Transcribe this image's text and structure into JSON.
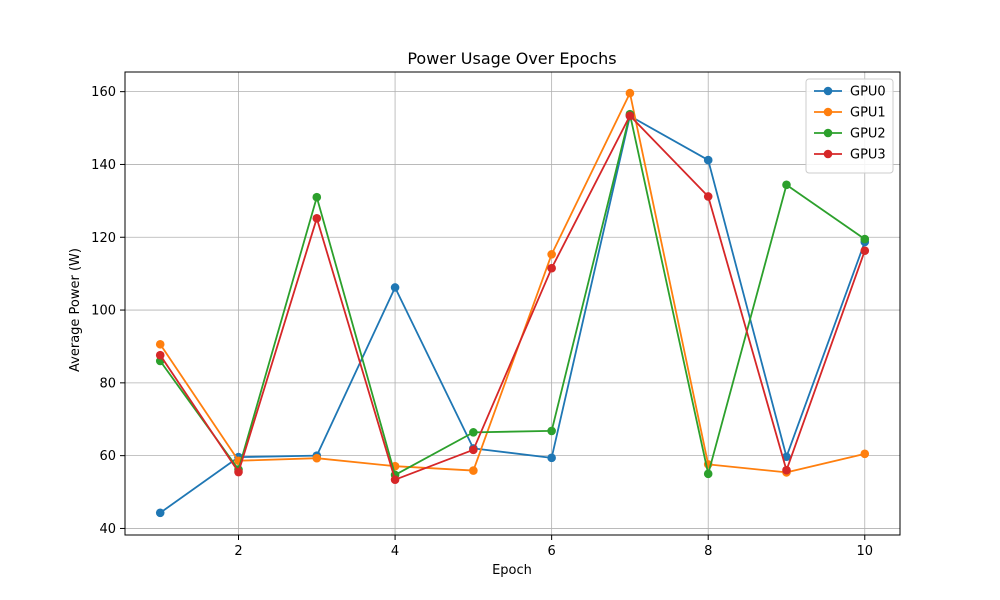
{
  "chart_data": {
    "type": "line",
    "title": "Power Usage Over Epochs",
    "xlabel": "Epoch",
    "ylabel": "Average Power (W)",
    "x": [
      1,
      2,
      3,
      4,
      5,
      6,
      7,
      8,
      9,
      10
    ],
    "xticks": [
      2,
      4,
      6,
      8,
      10
    ],
    "yticks": [
      40,
      60,
      80,
      100,
      120,
      140,
      160
    ],
    "xlim": [
      0.55,
      10.45
    ],
    "ylim": [
      38.2,
      165.4
    ],
    "grid": true,
    "legend_position": "top-right",
    "series": [
      {
        "name": "GPU0",
        "color": "#1f77b4",
        "values": [
          44.3,
          59.6,
          60.0,
          106.2,
          62.0,
          59.4,
          153.3,
          141.2,
          59.7,
          118.7
        ]
      },
      {
        "name": "GPU1",
        "color": "#ff7f0e",
        "values": [
          90.6,
          58.6,
          59.3,
          57.1,
          55.9,
          115.3,
          159.6,
          57.6,
          55.4,
          60.5
        ]
      },
      {
        "name": "GPU2",
        "color": "#2ca02c",
        "values": [
          86.0,
          56.2,
          131.0,
          54.7,
          66.4,
          66.8,
          153.8,
          55.0,
          134.4,
          119.5
        ]
      },
      {
        "name": "GPU3",
        "color": "#d62728",
        "values": [
          87.6,
          55.5,
          125.2,
          53.4,
          61.6,
          111.5,
          153.4,
          131.2,
          56.0,
          116.3
        ]
      }
    ]
  }
}
